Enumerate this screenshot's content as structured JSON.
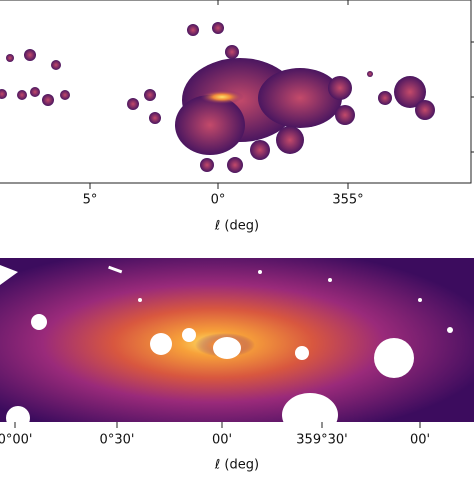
{
  "panels": [
    {
      "xticks": [
        "5°",
        "0°",
        "355°"
      ],
      "xlabel": "ℓ (deg)"
    },
    {
      "xticks": [
        "0°00'",
        "0°30'",
        "00'",
        "359°30'",
        "00'"
      ],
      "xlabel": "ℓ (deg)"
    }
  ]
}
